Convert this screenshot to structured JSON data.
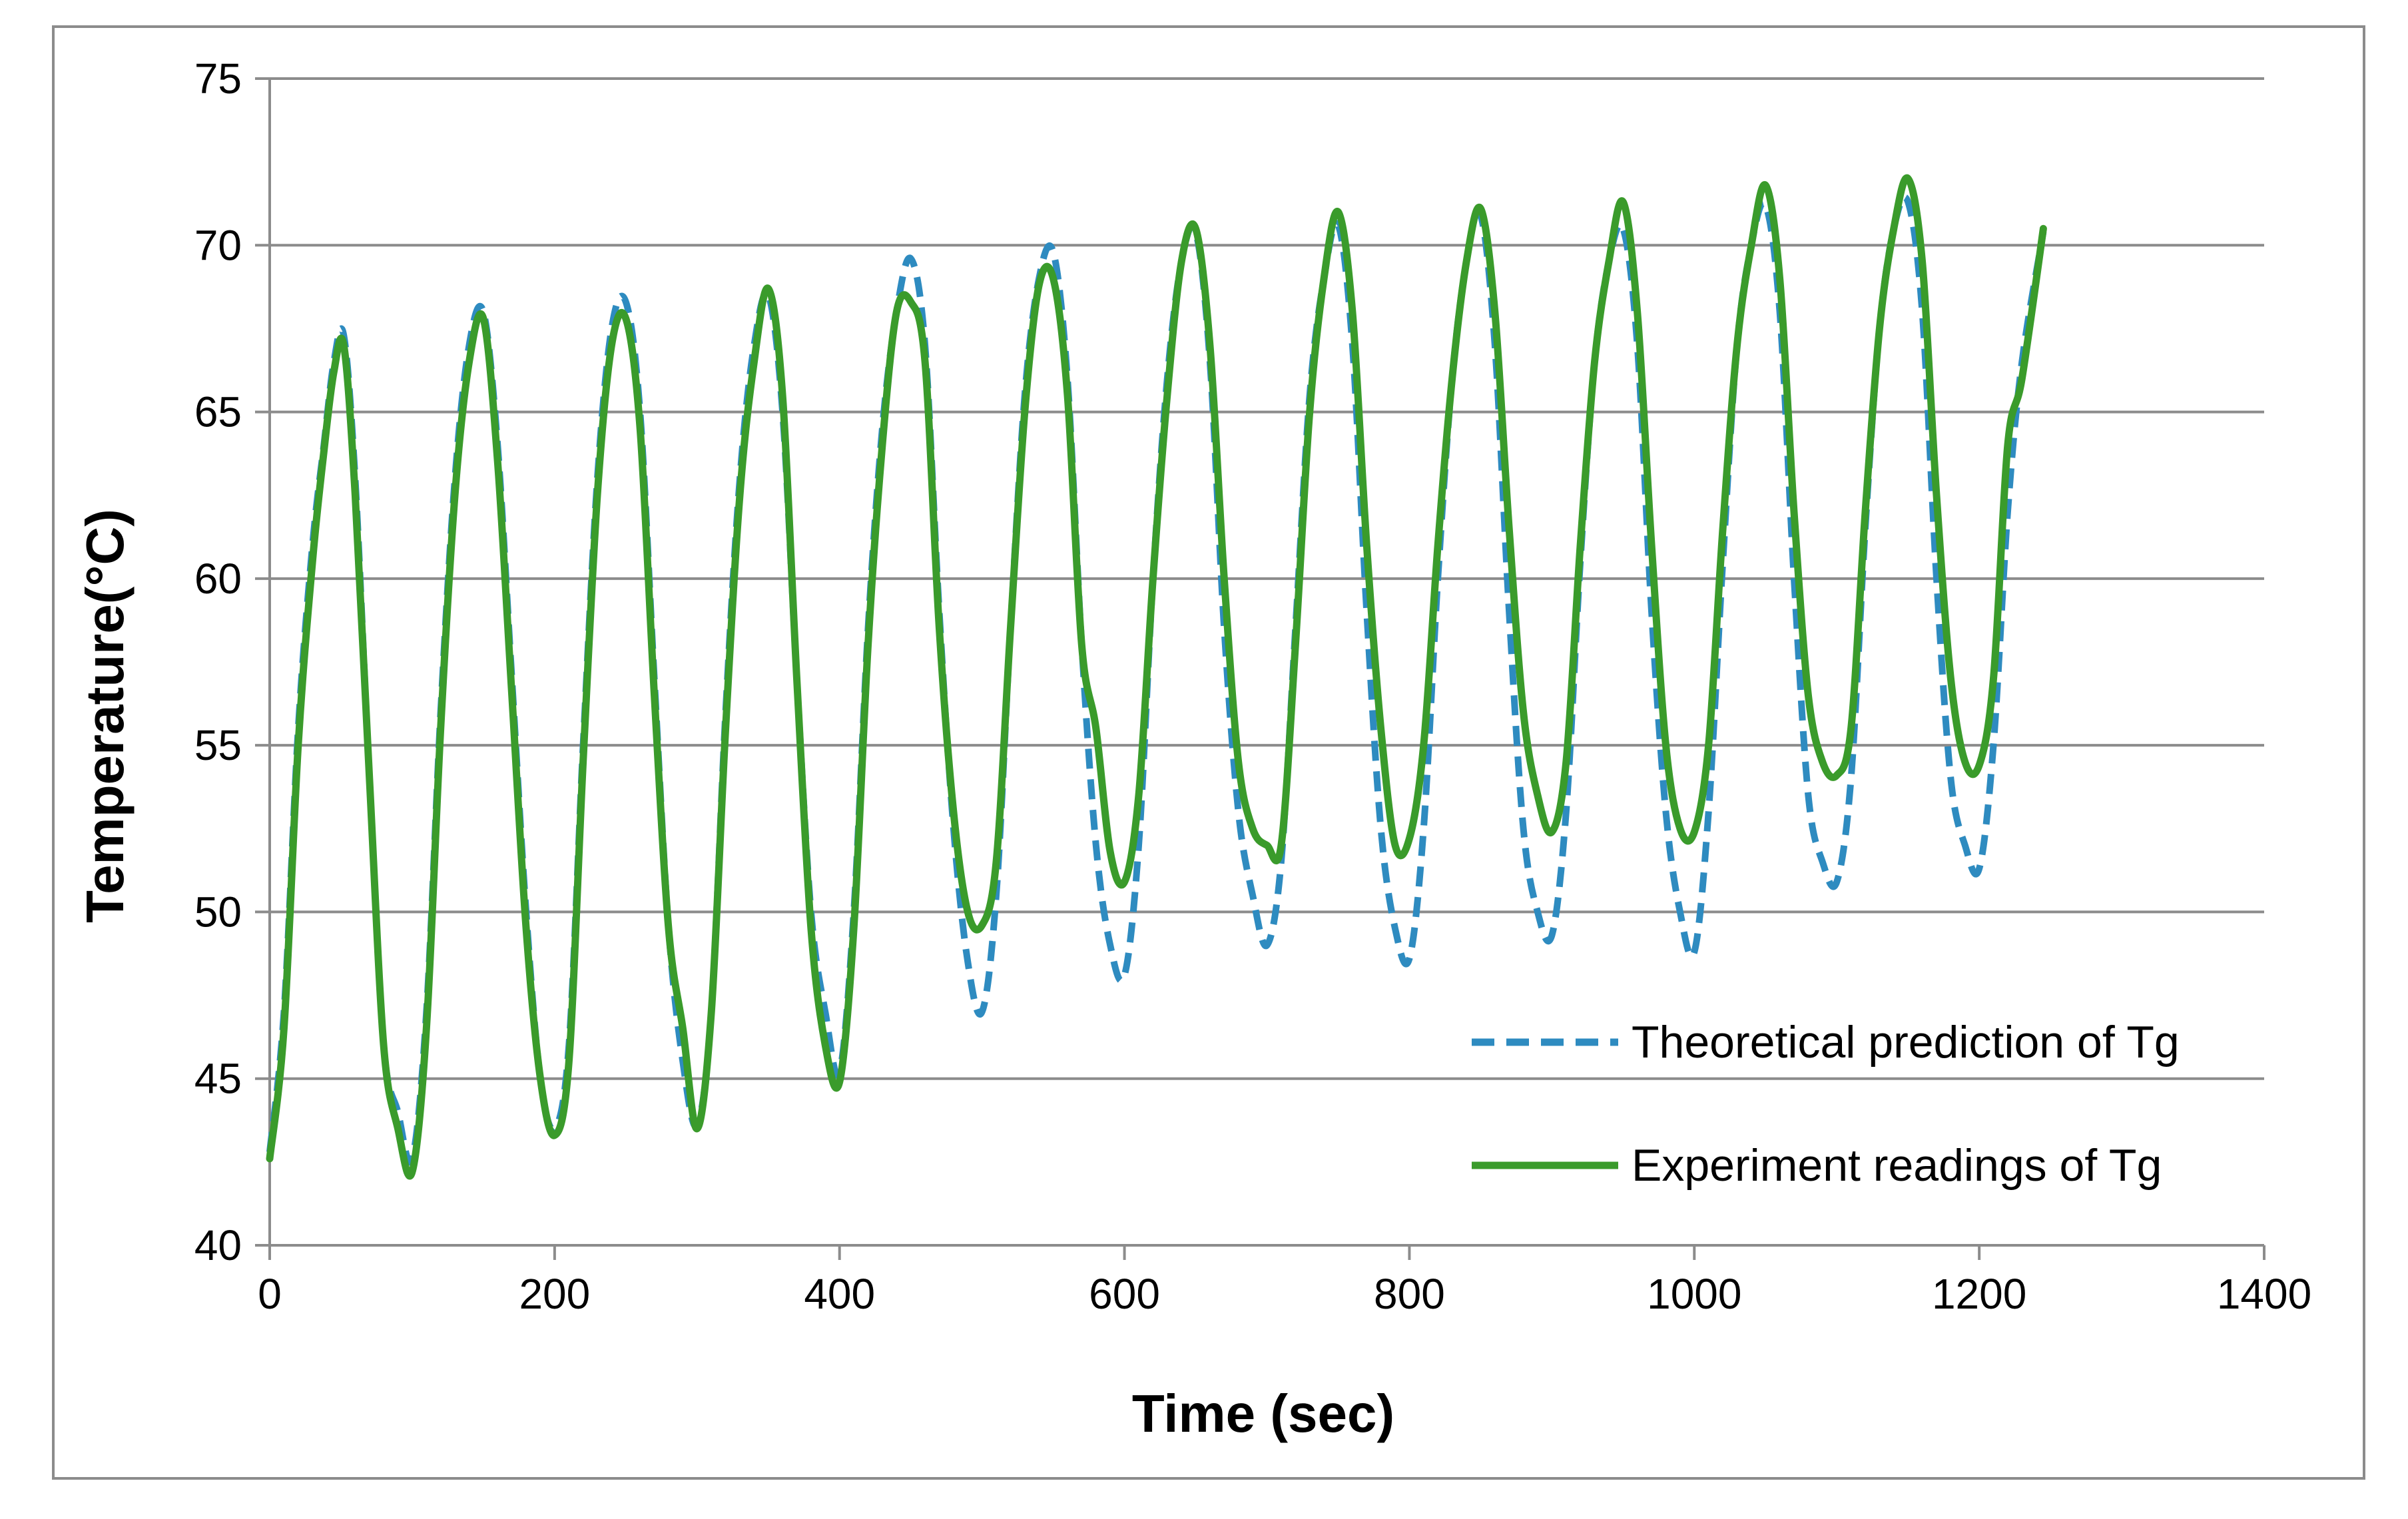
{
  "chart_data": {
    "type": "line",
    "title": "",
    "xlabel": "Time (sec)",
    "ylabel": "Temperature(°C)",
    "xlim": [
      0,
      1400
    ],
    "ylim": [
      40,
      75
    ],
    "xticks": [
      0,
      200,
      400,
      600,
      800,
      1000,
      1200,
      1400
    ],
    "yticks": [
      40,
      45,
      50,
      55,
      60,
      65,
      70,
      75
    ],
    "xtick_labels": [
      "0",
      "200",
      "400",
      "600",
      "800",
      "1000",
      "1200",
      "1400"
    ],
    "ytick_labels": [
      "40",
      "45",
      "50",
      "55",
      "60",
      "65",
      "70",
      "75"
    ],
    "grid": "horizontal",
    "legend_position": "bottom-right",
    "series": [
      {
        "name": "Theoretical prediction of Tg",
        "color": "#2E8BC0",
        "style": "dashed",
        "x": [
          0,
          10,
          20,
          30,
          38,
          45,
          52,
          60,
          70,
          80,
          90,
          100,
          110,
          120,
          130,
          140,
          150,
          160,
          170,
          180,
          190,
          200,
          210,
          220,
          230,
          240,
          250,
          260,
          270,
          280,
          290,
          300,
          310,
          320,
          330,
          340,
          350,
          360,
          370,
          380,
          390,
          400,
          410,
          420,
          430,
          440,
          450,
          460,
          470,
          480,
          490,
          500,
          510,
          520,
          530,
          540,
          550,
          560,
          570,
          580,
          590,
          600,
          610,
          620,
          630,
          640,
          650,
          660,
          670,
          680,
          690,
          700,
          710,
          720,
          730,
          740,
          750,
          760,
          770,
          780,
          790,
          800,
          810,
          820,
          830,
          840,
          850,
          860,
          870,
          880,
          890,
          900,
          910,
          920,
          930,
          940,
          950,
          960,
          970,
          980,
          990,
          1000,
          1010,
          1020,
          1030,
          1040,
          1050,
          1060,
          1070,
          1080,
          1090,
          1100,
          1110,
          1120,
          1130,
          1140,
          1150,
          1160,
          1170,
          1180,
          1190,
          1200,
          1210,
          1220,
          1230,
          1245
        ],
        "y": [
          42.8,
          47.0,
          55.5,
          61.0,
          64.0,
          66.5,
          67.3,
          63.0,
          54.0,
          46.0,
          44.0,
          42.6,
          47.0,
          56.0,
          63.0,
          67.0,
          68.0,
          64.0,
          57.0,
          50.0,
          45.0,
          43.5,
          46.0,
          55.0,
          63.0,
          67.5,
          68.3,
          65.0,
          57.0,
          49.5,
          45.5,
          43.6,
          47.0,
          56.0,
          63.0,
          67.0,
          68.5,
          65.0,
          57.0,
          50.0,
          47.0,
          45.2,
          50.0,
          58.5,
          64.5,
          68.0,
          69.6,
          67.0,
          59.0,
          52.5,
          48.5,
          47.0,
          50.5,
          58.5,
          65.5,
          69.0,
          69.8,
          66.0,
          58.0,
          52.0,
          49.0,
          48.1,
          52.0,
          60.0,
          66.0,
          69.5,
          70.4,
          66.5,
          58.5,
          53.0,
          50.5,
          49.0,
          51.5,
          58.5,
          65.5,
          69.0,
          70.6,
          67.0,
          59.0,
          52.5,
          49.5,
          48.6,
          52.5,
          60.0,
          66.0,
          69.5,
          70.9,
          67.0,
          59.0,
          52.5,
          50.0,
          49.3,
          53.0,
          60.5,
          66.5,
          69.5,
          70.5,
          67.0,
          59.0,
          53.0,
          50.0,
          48.8,
          53.0,
          60.5,
          67.0,
          70.0,
          71.2,
          68.0,
          60.0,
          53.5,
          51.5,
          50.9,
          54.0,
          61.5,
          67.5,
          70.5,
          71.3,
          68.0,
          60.0,
          54.0,
          52.0,
          51.3,
          55.0,
          62.0,
          66.5,
          70.4
        ]
      },
      {
        "name": "Experiment readings of Tg",
        "color": "#3A9B2B",
        "style": "solid",
        "x": [
          0,
          10,
          20,
          30,
          38,
          45,
          52,
          60,
          70,
          80,
          90,
          100,
          110,
          120,
          130,
          140,
          150,
          160,
          170,
          180,
          190,
          200,
          210,
          220,
          230,
          240,
          250,
          260,
          270,
          280,
          290,
          300,
          310,
          320,
          330,
          340,
          350,
          360,
          370,
          380,
          390,
          400,
          410,
          420,
          430,
          440,
          450,
          460,
          470,
          480,
          490,
          500,
          510,
          520,
          530,
          540,
          550,
          560,
          570,
          580,
          590,
          600,
          610,
          620,
          630,
          640,
          650,
          660,
          670,
          680,
          690,
          700,
          710,
          720,
          730,
          740,
          750,
          760,
          770,
          780,
          790,
          800,
          810,
          820,
          830,
          840,
          850,
          860,
          870,
          880,
          890,
          900,
          910,
          920,
          930,
          940,
          950,
          960,
          970,
          980,
          990,
          1000,
          1010,
          1020,
          1030,
          1040,
          1050,
          1060,
          1070,
          1080,
          1090,
          1100,
          1110,
          1120,
          1130,
          1140,
          1150,
          1160,
          1170,
          1180,
          1190,
          1200,
          1210,
          1220,
          1230,
          1245
        ],
        "y": [
          42.6,
          46.5,
          55.0,
          60.5,
          63.8,
          66.2,
          67.0,
          62.5,
          54.0,
          46.0,
          43.5,
          42.2,
          46.5,
          55.5,
          62.5,
          66.5,
          67.8,
          63.5,
          56.5,
          49.5,
          45.0,
          43.3,
          45.5,
          54.5,
          62.5,
          67.0,
          67.8,
          64.5,
          56.5,
          49.5,
          46.5,
          43.5,
          47.0,
          55.5,
          62.5,
          66.5,
          68.7,
          65.5,
          57.0,
          49.5,
          46.0,
          44.9,
          49.5,
          58.0,
          64.0,
          68.0,
          68.3,
          66.5,
          58.5,
          53.0,
          50.0,
          49.6,
          51.5,
          58.5,
          65.0,
          68.8,
          69.0,
          65.5,
          58.0,
          55.5,
          51.8,
          50.9,
          53.5,
          60.0,
          65.5,
          69.5,
          70.5,
          67.0,
          60.0,
          54.5,
          52.5,
          52.0,
          52.0,
          58.0,
          65.0,
          69.0,
          71.0,
          68.0,
          61.0,
          55.5,
          52.0,
          52.2,
          55.0,
          61.0,
          66.0,
          69.5,
          71.1,
          68.0,
          61.5,
          56.0,
          53.5,
          52.4,
          54.5,
          61.0,
          66.5,
          69.5,
          71.3,
          68.0,
          61.0,
          55.0,
          52.5,
          52.4,
          55.0,
          61.5,
          67.0,
          70.0,
          71.8,
          69.0,
          62.0,
          56.5,
          54.5,
          54.1,
          55.5,
          62.0,
          67.5,
          70.5,
          72.0,
          69.5,
          62.5,
          57.0,
          54.5,
          54.4,
          57.0,
          64.0,
          66.0,
          70.5
        ]
      }
    ]
  }
}
